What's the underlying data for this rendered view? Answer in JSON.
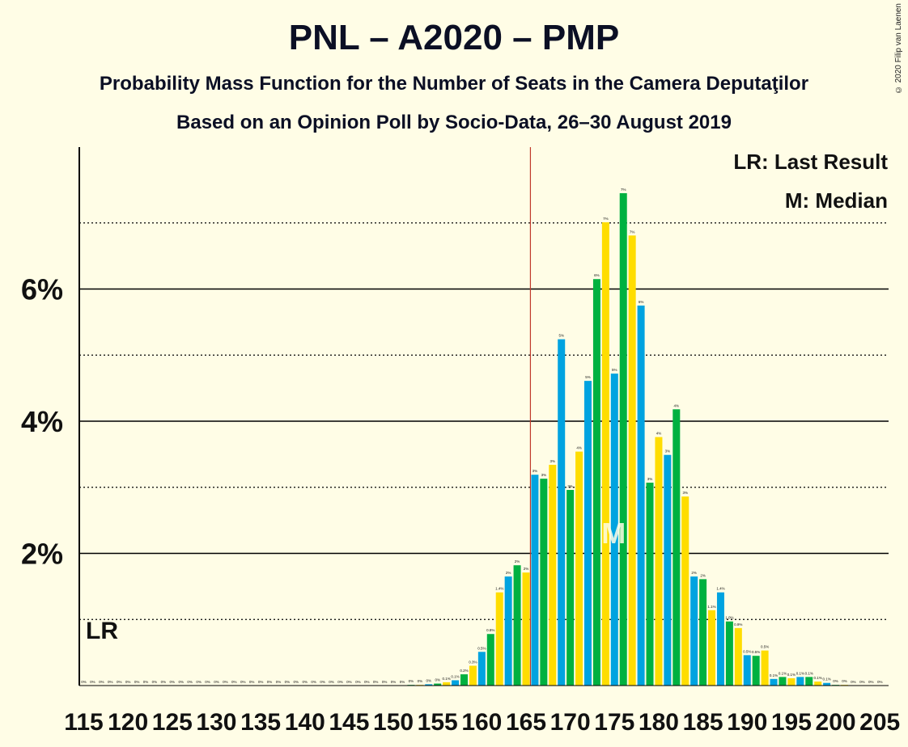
{
  "title": "PNL – A2020 – PMP",
  "subtitle1": "Probability Mass Function for the Number of Seats in the Camera Deputaţilor",
  "subtitle2": "Based on an Opinion Poll by Socio-Data, 26–30 August 2019",
  "copyright": "© 2020 Filip van Laenen",
  "colors": {
    "blue": "#00A3E0",
    "green": "#00B140",
    "yellow": "#FFDD00",
    "last_result_line": "#C0392B",
    "axis": "#000000"
  },
  "chart_data": {
    "type": "bar",
    "xlim": [
      115,
      205
    ],
    "ylim": [
      0,
      0.08
    ],
    "x_ticks": [
      "115",
      "120",
      "125",
      "130",
      "135",
      "140",
      "145",
      "150",
      "155",
      "160",
      "165",
      "170",
      "175",
      "180",
      "185",
      "190",
      "195",
      "200",
      "205"
    ],
    "y_ticks": [
      {
        "value": 0.02,
        "label": "2%"
      },
      {
        "value": 0.04,
        "label": "4%"
      },
      {
        "value": 0.06,
        "label": "6%"
      }
    ],
    "dotted_gridlines": [
      0.01,
      0.03,
      0.05,
      0.07
    ],
    "last_result": 166,
    "median": 175,
    "legend": {
      "lr": "LR: Last Result",
      "m": "M: Median"
    },
    "lr_label": "LR",
    "m_label": "M",
    "bars": [
      {
        "x": 115,
        "v": 0,
        "l": "0%"
      },
      {
        "x": 116,
        "v": 0,
        "l": "0%"
      },
      {
        "x": 117,
        "v": 0,
        "l": "0%"
      },
      {
        "x": 118,
        "v": 0,
        "l": "0%"
      },
      {
        "x": 119,
        "v": 0,
        "l": "0%"
      },
      {
        "x": 120,
        "v": 0,
        "l": "0%"
      },
      {
        "x": 121,
        "v": 0,
        "l": "0%"
      },
      {
        "x": 122,
        "v": 0,
        "l": "0%"
      },
      {
        "x": 123,
        "v": 0,
        "l": "0%"
      },
      {
        "x": 124,
        "v": 0,
        "l": "0%"
      },
      {
        "x": 125,
        "v": 0,
        "l": "0%"
      },
      {
        "x": 126,
        "v": 0,
        "l": "0%"
      },
      {
        "x": 127,
        "v": 0,
        "l": "0%"
      },
      {
        "x": 128,
        "v": 0,
        "l": "0%"
      },
      {
        "x": 129,
        "v": 0,
        "l": "0%"
      },
      {
        "x": 130,
        "v": 0,
        "l": "0%"
      },
      {
        "x": 131,
        "v": 0,
        "l": "0%"
      },
      {
        "x": 132,
        "v": 0,
        "l": "0%"
      },
      {
        "x": 133,
        "v": 0,
        "l": "0%"
      },
      {
        "x": 134,
        "v": 0,
        "l": "0%"
      },
      {
        "x": 135,
        "v": 0,
        "l": "0%"
      },
      {
        "x": 136,
        "v": 0,
        "l": "0%"
      },
      {
        "x": 137,
        "v": 0,
        "l": "0%"
      },
      {
        "x": 138,
        "v": 0,
        "l": "0%"
      },
      {
        "x": 139,
        "v": 0,
        "l": "0%"
      },
      {
        "x": 140,
        "v": 0,
        "l": "0%"
      },
      {
        "x": 141,
        "v": 0,
        "l": "0%"
      },
      {
        "x": 142,
        "v": 0,
        "l": "0%"
      },
      {
        "x": 143,
        "v": 0,
        "l": "0%"
      },
      {
        "x": 144,
        "v": 0,
        "l": "0%"
      },
      {
        "x": 145,
        "v": 0,
        "l": "0%"
      },
      {
        "x": 146,
        "v": 0,
        "l": "0%"
      },
      {
        "x": 147,
        "v": 0,
        "l": "0%"
      },
      {
        "x": 148,
        "v": 0,
        "l": "0%"
      },
      {
        "x": 149,
        "v": 0,
        "l": "0%"
      },
      {
        "x": 150,
        "v": 0,
        "l": "0%"
      },
      {
        "x": 151,
        "v": 0,
        "l": "0%"
      },
      {
        "x": 152,
        "v": 0.0001,
        "l": "0%"
      },
      {
        "x": 153,
        "v": 0.0001,
        "l": "0%"
      },
      {
        "x": 154,
        "v": 0.0002,
        "l": "0%"
      },
      {
        "x": 155,
        "v": 0.0003,
        "l": "0%"
      },
      {
        "x": 156,
        "v": 0.0005,
        "l": "0.1%"
      },
      {
        "x": 157,
        "v": 0.0008,
        "l": "0.1%"
      },
      {
        "x": 158,
        "v": 0.0017,
        "l": "0.2%"
      },
      {
        "x": 159,
        "v": 0.003,
        "l": "0.3%"
      },
      {
        "x": 160,
        "v": 0.0051,
        "l": "0.5%"
      },
      {
        "x": 161,
        "v": 0.0078,
        "l": "0.8%"
      },
      {
        "x": 162,
        "v": 0.0141,
        "l": "1.4%"
      },
      {
        "x": 163,
        "v": 0.0165,
        "l": "2%"
      },
      {
        "x": 164,
        "v": 0.0182,
        "l": "2%"
      },
      {
        "x": 165,
        "v": 0.0171,
        "l": "2%"
      },
      {
        "x": 166,
        "v": 0.0319,
        "l": "3%"
      },
      {
        "x": 167,
        "v": 0.0313,
        "l": "3%"
      },
      {
        "x": 168,
        "v": 0.0334,
        "l": "3%"
      },
      {
        "x": 169,
        "v": 0.0524,
        "l": "5%"
      },
      {
        "x": 170,
        "v": 0.0296,
        "l": "3%"
      },
      {
        "x": 171,
        "v": 0.0354,
        "l": "4%"
      },
      {
        "x": 172,
        "v": 0.0461,
        "l": "5%"
      },
      {
        "x": 173,
        "v": 0.0615,
        "l": "6%"
      },
      {
        "x": 174,
        "v": 0.0701,
        "l": "7%"
      },
      {
        "x": 175,
        "v": 0.0472,
        "l": "5%"
      },
      {
        "x": 176,
        "v": 0.0745,
        "l": "7%"
      },
      {
        "x": 177,
        "v": 0.0681,
        "l": "7%"
      },
      {
        "x": 178,
        "v": 0.0575,
        "l": "6%"
      },
      {
        "x": 179,
        "v": 0.0307,
        "l": "3%"
      },
      {
        "x": 180,
        "v": 0.0376,
        "l": "4%"
      },
      {
        "x": 181,
        "v": 0.0349,
        "l": "3%"
      },
      {
        "x": 182,
        "v": 0.0418,
        "l": "4%"
      },
      {
        "x": 183,
        "v": 0.0286,
        "l": "3%"
      },
      {
        "x": 184,
        "v": 0.0165,
        "l": "2%"
      },
      {
        "x": 185,
        "v": 0.0161,
        "l": "2%"
      },
      {
        "x": 186,
        "v": 0.0114,
        "l": "1.1%"
      },
      {
        "x": 187,
        "v": 0.0141,
        "l": "1.4%"
      },
      {
        "x": 188,
        "v": 0.0097,
        "l": "1.0%"
      },
      {
        "x": 189,
        "v": 0.0087,
        "l": "0.9%"
      },
      {
        "x": 190,
        "v": 0.0046,
        "l": "0.5%"
      },
      {
        "x": 191,
        "v": 0.0045,
        "l": "0.5%"
      },
      {
        "x": 192,
        "v": 0.0053,
        "l": "0.5%"
      },
      {
        "x": 193,
        "v": 0.001,
        "l": "0.1%"
      },
      {
        "x": 194,
        "v": 0.0013,
        "l": "0.1%"
      },
      {
        "x": 195,
        "v": 0.0011,
        "l": "0.1%"
      },
      {
        "x": 196,
        "v": 0.0013,
        "l": "0.1%"
      },
      {
        "x": 197,
        "v": 0.0013,
        "l": "0.1%"
      },
      {
        "x": 198,
        "v": 0.0006,
        "l": "0.1%"
      },
      {
        "x": 199,
        "v": 0.0004,
        "l": "0.1%"
      },
      {
        "x": 200,
        "v": 0.0001,
        "l": "0%"
      },
      {
        "x": 201,
        "v": 0.0001,
        "l": "0%"
      },
      {
        "x": 202,
        "v": 0,
        "l": "0%"
      },
      {
        "x": 203,
        "v": 0,
        "l": "0%"
      },
      {
        "x": 204,
        "v": 0,
        "l": "0%"
      },
      {
        "x": 205,
        "v": 0,
        "l": "0%"
      }
    ]
  }
}
